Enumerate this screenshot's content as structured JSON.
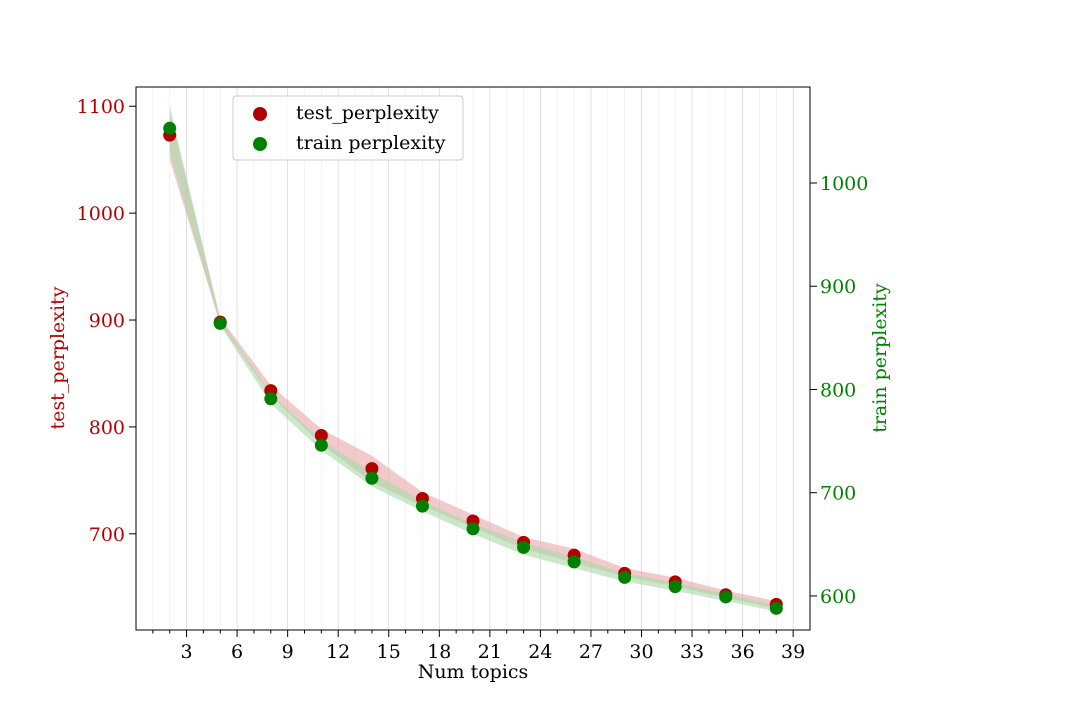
{
  "chart_data": {
    "type": "scatter",
    "xlabel": "Num topics",
    "xlim": [
      0,
      40
    ],
    "x_ticks": [
      3,
      6,
      9,
      12,
      15,
      18,
      21,
      24,
      27,
      30,
      33,
      36,
      39
    ],
    "grid": "vertical lines at every integer x",
    "legend_position": "upper-left",
    "left_axis": {
      "label": "test_perplexity",
      "color": "#b20000",
      "ylim": [
        610,
        1118
      ],
      "ticks": [
        700,
        800,
        900,
        1000,
        1100
      ]
    },
    "right_axis": {
      "label": "train perplexity",
      "color": "#008000",
      "ylim": [
        567,
        1093
      ],
      "ticks": [
        600,
        700,
        800,
        900,
        1000
      ]
    },
    "series": [
      {
        "name": "test_perplexity",
        "axis": "left",
        "color": "#b20000",
        "band_color": "#e8a8a8",
        "x": [
          2,
          5,
          8,
          11,
          14,
          17,
          20,
          23,
          26,
          29,
          32,
          35,
          38
        ],
        "y": [
          1073,
          898,
          834,
          792,
          761,
          733,
          712,
          692,
          680,
          663,
          655,
          643,
          634
        ],
        "band_low": [
          1050,
          896,
          829,
          784,
          748,
          726,
          706,
          686,
          673,
          660,
          651,
          640,
          630
        ],
        "band_high": [
          1094,
          902,
          839,
          798,
          773,
          739,
          718,
          697,
          686,
          668,
          659,
          647,
          637
        ]
      },
      {
        "name": "train perplexity",
        "axis": "right",
        "color": "#008000",
        "band_color": "#a8d8a8",
        "x": [
          2,
          5,
          8,
          11,
          14,
          17,
          20,
          23,
          26,
          29,
          32,
          35,
          38
        ],
        "y": [
          1053,
          864,
          791,
          746,
          714,
          687,
          665,
          647,
          633,
          618,
          609,
          599,
          588
        ],
        "band_low": [
          1030,
          862,
          786,
          741,
          706,
          682,
          660,
          640,
          627,
          614,
          605,
          595,
          585
        ],
        "band_high": [
          1075,
          868,
          796,
          751,
          720,
          692,
          670,
          652,
          638,
          622,
          613,
          602,
          591
        ]
      }
    ]
  }
}
